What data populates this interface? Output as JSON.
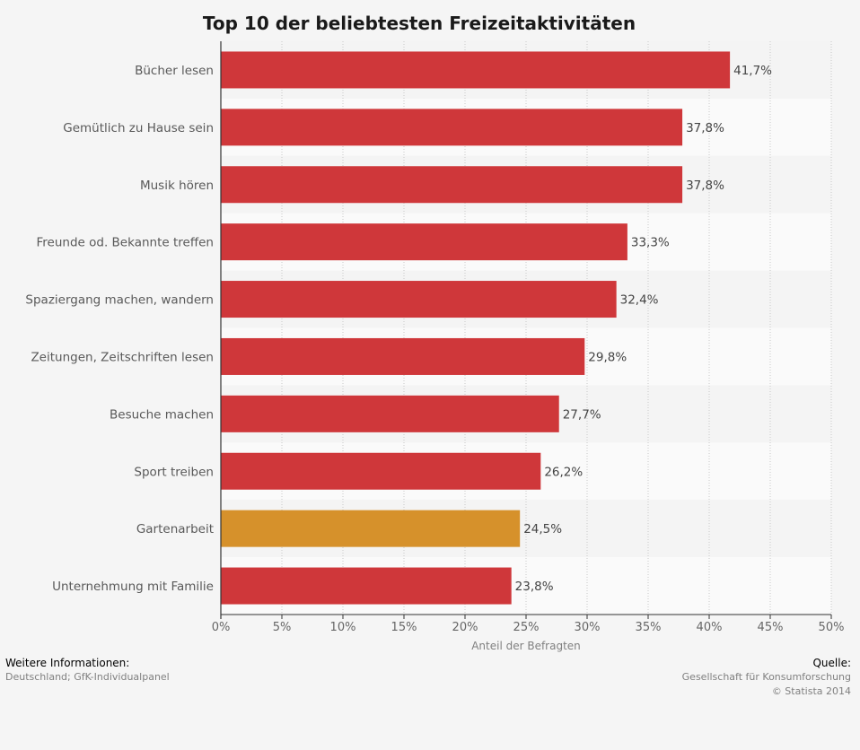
{
  "chart_data": {
    "type": "bar",
    "orientation": "horizontal",
    "title": "Top 10 der beliebtesten Freizeitaktivitäten",
    "xlabel": "Anteil der Befragten",
    "xlim": [
      0,
      50
    ],
    "xticks": [
      "0%",
      "5%",
      "10%",
      "15%",
      "20%",
      "25%",
      "30%",
      "35%",
      "40%",
      "45%",
      "50%"
    ],
    "categories": [
      "Bücher lesen",
      "Gemütlich zu Hause sein",
      "Musik hören",
      "Freunde od. Bekannte treffen",
      "Spaziergang machen, wandern",
      "Zeitungen, Zeitschriften lesen",
      "Besuche machen",
      "Sport treiben",
      "Gartenarbeit",
      "Unternehmung mit Familie"
    ],
    "values": [
      41.7,
      37.8,
      37.8,
      33.3,
      32.4,
      29.8,
      27.7,
      26.2,
      24.5,
      23.8
    ],
    "value_labels": [
      "41,7%",
      "37,8%",
      "37,8%",
      "33,3%",
      "32,4%",
      "29,8%",
      "27,7%",
      "26,2%",
      "24,5%",
      "23,8%"
    ],
    "colors": [
      "#cf373a",
      "#cf373a",
      "#cf373a",
      "#cf373a",
      "#cf373a",
      "#cf373a",
      "#cf373a",
      "#cf373a",
      "#d6912b",
      "#cf373a"
    ],
    "grid": true
  },
  "footer": {
    "info_heading": "Weitere Informationen:",
    "info_text": "Deutschland; GfK-Individualpanel",
    "source_heading": "Quelle:",
    "source_text": "Gesellschaft für Konsumforschung",
    "copyright": "© Statista 2014"
  }
}
